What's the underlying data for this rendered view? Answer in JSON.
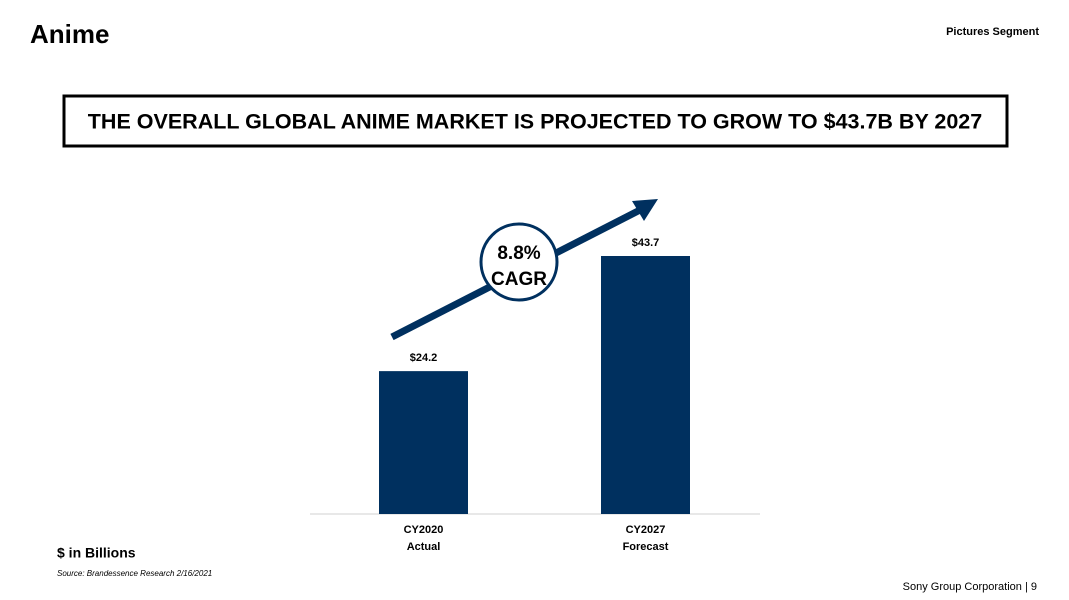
{
  "header": {
    "title": "Anime",
    "segment": "Pictures Segment",
    "headline": "THE OVERALL GLOBAL ANIME MARKET IS PROJECTED TO GROW TO $43.7B BY 2027"
  },
  "chart_data": {
    "type": "bar",
    "categories": [
      "CY2020",
      "CY2027"
    ],
    "category_notes": [
      "Actual",
      "Forecast"
    ],
    "values": [
      24.2,
      43.7
    ],
    "value_labels": [
      "$24.2",
      "$43.7"
    ],
    "color": "#00305f",
    "annotations": [
      "8.8%",
      "CAGR"
    ],
    "unit_note": "$ in Billions",
    "source": "Source: Brandessence Research 2/16/2021"
  },
  "footer": {
    "text": "Sony Group Corporation | 9"
  }
}
